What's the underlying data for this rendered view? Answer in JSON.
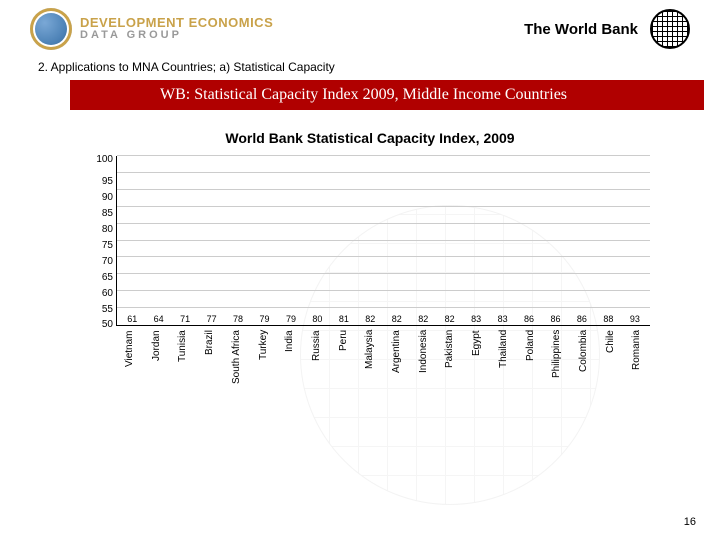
{
  "header": {
    "logo_line1": "DEVELOPMENT ECONOMICS",
    "logo_line2": "DATA GROUP",
    "title": "The World Bank"
  },
  "section_line": "2.  Applications to MNA Countries; a) Statistical Capacity",
  "red_bar": "WB:  Statistical Capacity Index 2009, Middle Income Countries",
  "chart": {
    "type": "bar",
    "title": "World Bank Statistical Capacity Index, 2009",
    "ylim": [
      50,
      100
    ],
    "ytick_step": 5,
    "yticks": [
      100,
      95,
      90,
      85,
      80,
      75,
      70,
      65,
      60,
      55,
      50
    ],
    "grid_color": "#cccccc",
    "background_color": "#ffffff",
    "bar_color": "#c94a8a",
    "label_fontsize": 10,
    "value_fontsize": 9,
    "title_fontsize": 14,
    "categories": [
      "Vietnam",
      "Jordan",
      "Tunisia",
      "Brazil",
      "South Africa",
      "Turkey",
      "India",
      "Russia",
      "Peru",
      "Malaysia",
      "Argentina",
      "Indonesia",
      "Pakistan",
      "Egypt",
      "Thailand",
      "Poland",
      "Philippines",
      "Colombia",
      "Chile",
      "Romania"
    ],
    "values": [
      61,
      64,
      71,
      77,
      78,
      79,
      79,
      80,
      81,
      82,
      82,
      82,
      82,
      83,
      83,
      86,
      86,
      86,
      88,
      93
    ]
  },
  "page_number": "16"
}
